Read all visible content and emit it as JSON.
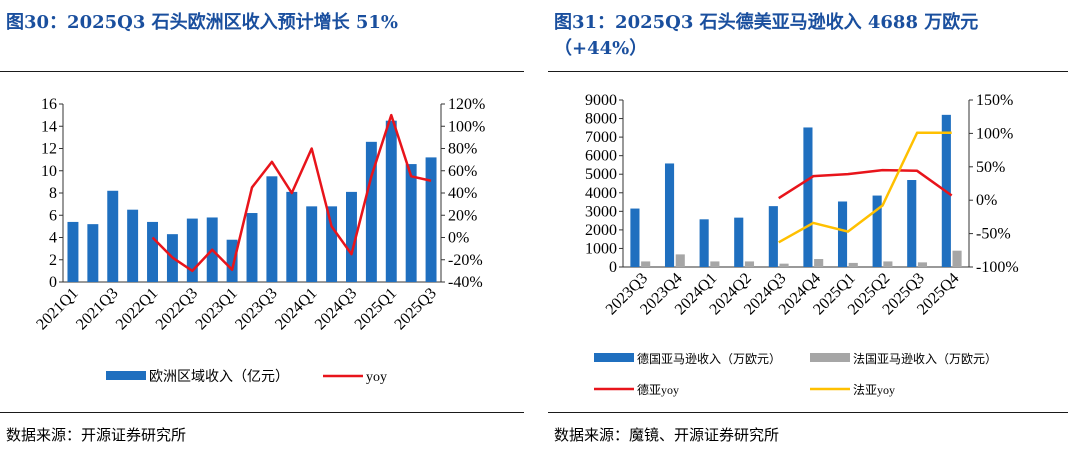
{
  "chart_data": [
    {
      "type": "bar",
      "title": "图30：2025Q3 石头欧洲区收入预计增长 51%",
      "source": "数据来源：开源证券研究所",
      "categories": [
        "2021Q1",
        "2021Q2",
        "2021Q3",
        "2021Q4",
        "2022Q1",
        "2022Q2",
        "2022Q3",
        "2022Q4",
        "2023Q1",
        "2023Q2",
        "2023Q3",
        "2023Q4",
        "2024Q1",
        "2024Q2",
        "2024Q3",
        "2024Q4",
        "2025Q1",
        "2025Q2",
        "2025Q3"
      ],
      "x_tick_labels": [
        "2021Q1",
        "",
        "2021Q3",
        "",
        "2022Q1",
        "",
        "2022Q3",
        "",
        "2023Q1",
        "",
        "2023Q3",
        "",
        "2024Q1",
        "",
        "2024Q3",
        "",
        "2025Q1",
        "",
        "2025Q3"
      ],
      "series": [
        {
          "name": "欧洲区域收入（亿元）",
          "type": "bar",
          "axis": "left",
          "color": "#1f6fbf",
          "values": [
            5.4,
            5.2,
            8.2,
            6.5,
            5.4,
            4.3,
            5.7,
            5.8,
            3.8,
            6.2,
            9.5,
            8.1,
            6.8,
            6.8,
            8.1,
            12.6,
            14.5,
            10.6,
            11.2
          ]
        },
        {
          "name": "yoy",
          "type": "line",
          "axis": "right",
          "color": "#e8141b",
          "values": [
            null,
            null,
            null,
            null,
            0.0,
            -0.18,
            -0.3,
            -0.11,
            -0.29,
            0.45,
            0.68,
            0.4,
            0.8,
            0.1,
            -0.15,
            0.55,
            1.1,
            0.55,
            0.51
          ]
        }
      ],
      "y_left": {
        "min": 0,
        "max": 16,
        "ticks": [
          "0",
          "2",
          "4",
          "6",
          "8",
          "10",
          "12",
          "14",
          "16"
        ]
      },
      "y_right": {
        "min": -0.4,
        "max": 1.2,
        "ticks": [
          "-40%",
          "-20%",
          "0%",
          "20%",
          "40%",
          "60%",
          "80%",
          "100%",
          "120%"
        ]
      },
      "legend": [
        {
          "label": "欧洲区域收入（亿元）",
          "kind": "bar",
          "color": "#1f6fbf"
        },
        {
          "label": "yoy",
          "kind": "line",
          "color": "#e8141b"
        }
      ]
    },
    {
      "type": "bar",
      "title": "图31：2025Q3 石头德美亚马逊收入 4688 万欧元（+44%）",
      "source": "数据来源：魔镜、开源证券研究所",
      "categories": [
        "2023Q3",
        "2023Q4",
        "2024Q1",
        "2024Q2",
        "2024Q3",
        "2024Q4",
        "2025Q1",
        "2025Q2",
        "2025Q3",
        "2025Q4"
      ],
      "series": [
        {
          "name": "德国亚马逊收入（万欧元）",
          "type": "bar",
          "axis": "left",
          "color": "#1f6fbf",
          "values": [
            3150,
            5580,
            2570,
            2660,
            3280,
            7520,
            3530,
            3850,
            4688,
            8200
          ]
        },
        {
          "name": "法国亚马逊收入（万欧元）",
          "type": "bar",
          "axis": "left",
          "color": "#a6a6a6",
          "values": [
            300,
            680,
            300,
            300,
            180,
            430,
            220,
            300,
            250,
            880
          ]
        },
        {
          "name": "德亚yoy",
          "type": "line",
          "axis": "right",
          "color": "#e8141b",
          "values": [
            null,
            null,
            null,
            null,
            0.03,
            0.36,
            0.39,
            0.45,
            0.44,
            0.07
          ]
        },
        {
          "name": "法亚yoy",
          "type": "line",
          "axis": "right",
          "color": "#ffc000",
          "values": [
            null,
            null,
            null,
            null,
            -0.63,
            -0.34,
            -0.47,
            -0.08,
            1.01,
            1.01
          ]
        }
      ],
      "y_left": {
        "min": 0,
        "max": 9000,
        "ticks": [
          "0",
          "1000",
          "2000",
          "3000",
          "4000",
          "5000",
          "6000",
          "7000",
          "8000",
          "9000"
        ]
      },
      "y_right": {
        "min": -1.0,
        "max": 1.5,
        "ticks": [
          "-100%",
          "-50%",
          "0%",
          "50%",
          "100%",
          "150%"
        ]
      },
      "legend": [
        {
          "label": "德国亚马逊收入（万欧元）",
          "kind": "bar",
          "color": "#1f6fbf"
        },
        {
          "label": "法国亚马逊收入（万欧元）",
          "kind": "bar",
          "color": "#a6a6a6"
        },
        {
          "label": "德亚yoy",
          "kind": "line",
          "color": "#e8141b"
        },
        {
          "label": "法亚yoy",
          "kind": "line",
          "color": "#ffc000"
        }
      ]
    }
  ]
}
